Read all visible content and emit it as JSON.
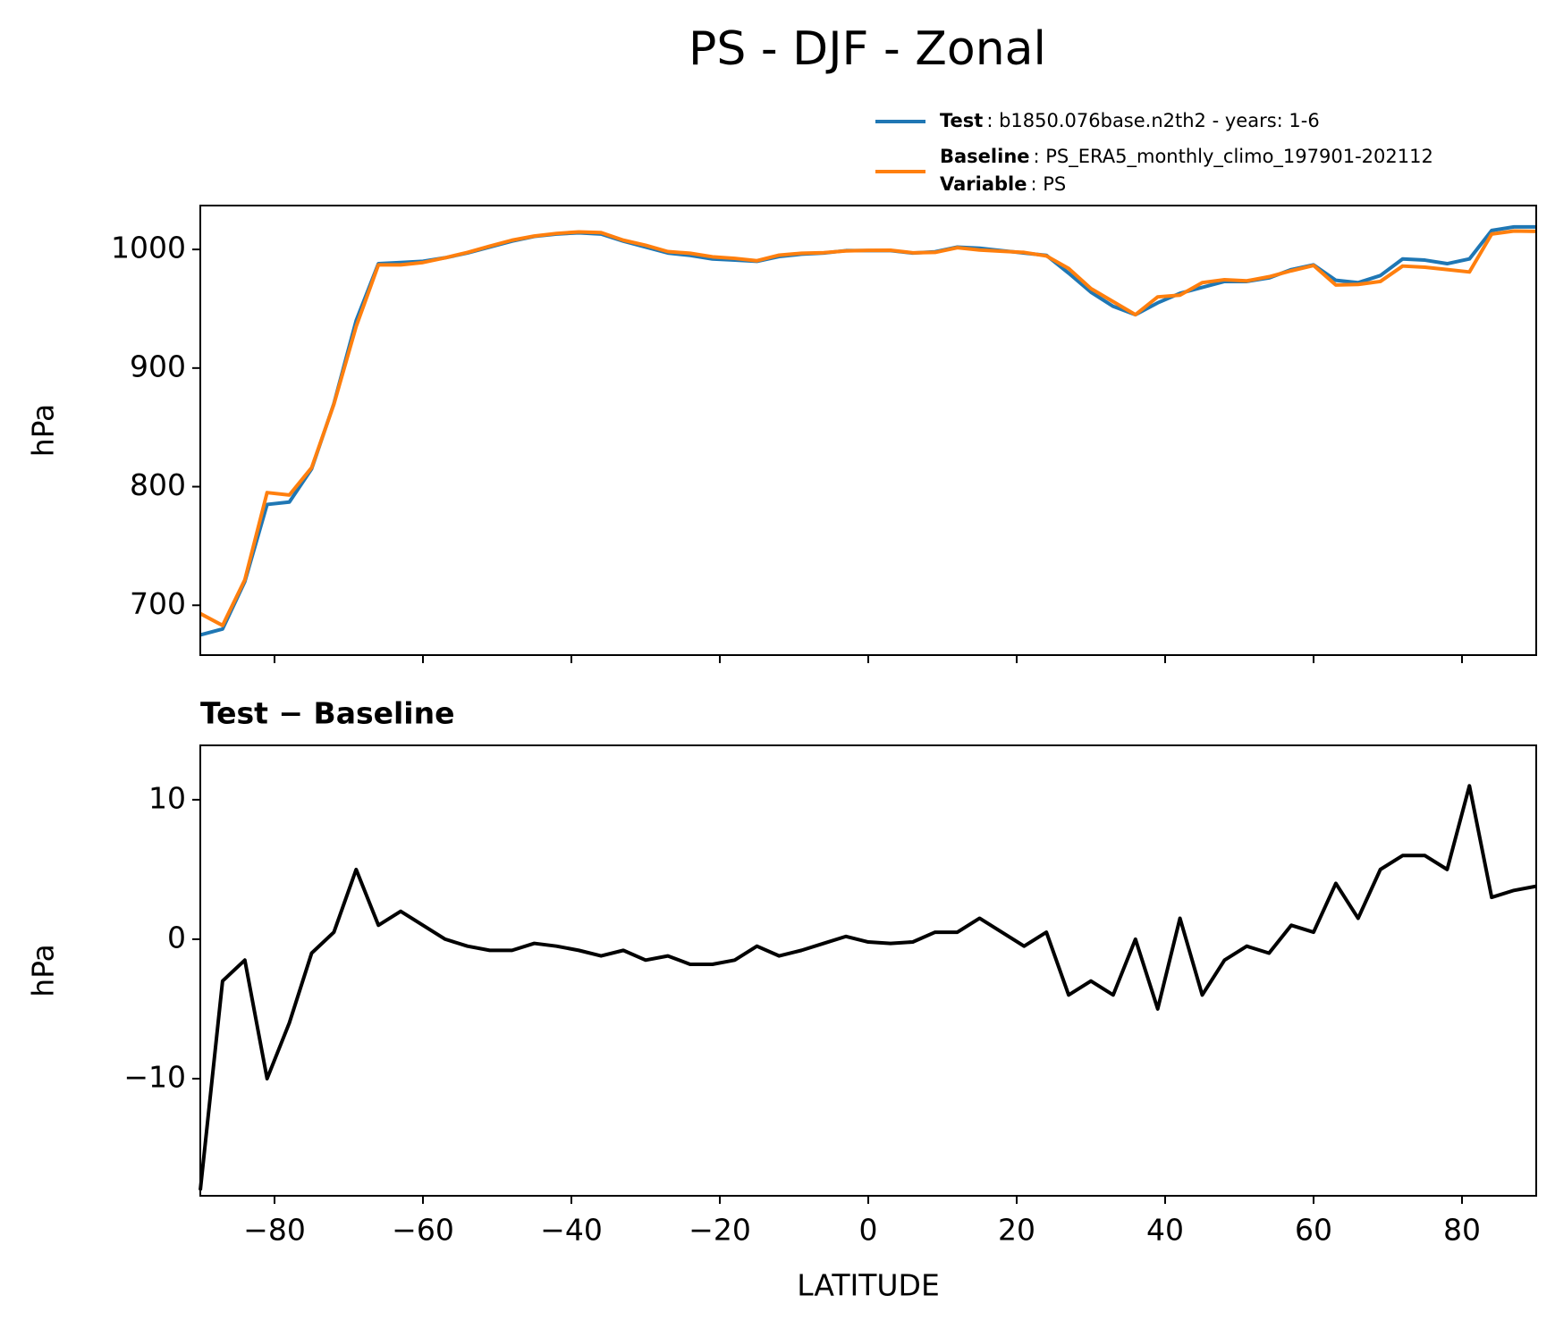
{
  "chart_data": [
    {
      "type": "line",
      "title": "PS - DJF - Zonal",
      "ylabel": "hPa",
      "x": [
        -90,
        -87,
        -84,
        -81,
        -78,
        -75,
        -72,
        -69,
        -66,
        -63,
        -60,
        -57,
        -54,
        -51,
        -48,
        -45,
        -42,
        -39,
        -36,
        -33,
        -30,
        -27,
        -24,
        -21,
        -18,
        -15,
        -12,
        -9,
        -6,
        -3,
        0,
        3,
        6,
        9,
        12,
        15,
        18,
        21,
        24,
        27,
        30,
        33,
        36,
        39,
        42,
        45,
        48,
        51,
        54,
        57,
        60,
        63,
        66,
        69,
        72,
        75,
        78,
        81,
        84,
        87,
        90
      ],
      "series": [
        {
          "name": "Test",
          "description": ": b1850.076base.n2th2 - years: 1-6",
          "color": "#1f77b4",
          "values": [
            675,
            680,
            720,
            785,
            787,
            815,
            870,
            940,
            988,
            989,
            990,
            993,
            997,
            1002,
            1007,
            1011,
            1013,
            1014,
            1013,
            1007,
            1002,
            997,
            995,
            992,
            991,
            990,
            994,
            996,
            997,
            999,
            999,
            999,
            997,
            998,
            1002,
            1001,
            999,
            997,
            995,
            980,
            964,
            952,
            945,
            955,
            963,
            968,
            973,
            973,
            976,
            983,
            987,
            974,
            972,
            978,
            992,
            991,
            988,
            992,
            1016,
            1019,
            1019
          ]
        },
        {
          "name": "Baseline",
          "description": ": PS_ERA5_monthly_climo_197901-202112",
          "color": "#ff7f0e",
          "values": [
            693,
            683,
            721.5,
            795,
            793,
            816,
            869.5,
            935,
            987,
            987,
            989,
            993,
            997.5,
            1002.8,
            1007.8,
            1011.3,
            1013.5,
            1014.8,
            1014.2,
            1007.8,
            1003.5,
            998.2,
            996.8,
            993.8,
            992.5,
            990.5,
            995.2,
            996.8,
            997.3,
            998.8,
            999.2,
            999.3,
            997.2,
            997.5,
            1001.5,
            999.5,
            998.5,
            997.5,
            994.5,
            984,
            967,
            956,
            945,
            960,
            961.5,
            972,
            974.5,
            973.5,
            977,
            982,
            986.5,
            970,
            970.5,
            973,
            986,
            985,
            983,
            981,
            1013,
            1015.5,
            1015.2
          ]
        }
      ],
      "legend_note": {
        "name": "Variable",
        "description": ": PS"
      },
      "xlim": [
        -90,
        90
      ],
      "ylim": [
        658,
        1037
      ],
      "yticks": [
        700,
        800,
        900,
        1000
      ]
    },
    {
      "type": "line",
      "title": "Test − Baseline",
      "ylabel": "hPa",
      "xlabel": "LATITUDE",
      "x": [
        -90,
        -87,
        -84,
        -81,
        -78,
        -75,
        -72,
        -69,
        -66,
        -63,
        -60,
        -57,
        -54,
        -51,
        -48,
        -45,
        -42,
        -39,
        -36,
        -33,
        -30,
        -27,
        -24,
        -21,
        -18,
        -15,
        -12,
        -9,
        -6,
        -3,
        0,
        3,
        6,
        9,
        12,
        15,
        18,
        21,
        24,
        27,
        30,
        33,
        36,
        39,
        42,
        45,
        48,
        51,
        54,
        57,
        60,
        63,
        66,
        69,
        72,
        75,
        78,
        81,
        84,
        87,
        90
      ],
      "series": [
        {
          "color": "#000000",
          "values": [
            -18,
            -3,
            -1.5,
            -10,
            -6,
            -1,
            0.5,
            5,
            1,
            2,
            1,
            0,
            -0.5,
            -0.8,
            -0.8,
            -0.3,
            -0.5,
            -0.8,
            -1.2,
            -0.8,
            -1.5,
            -1.2,
            -1.8,
            -1.8,
            -1.5,
            -0.5,
            -1.2,
            -0.8,
            -0.3,
            0.2,
            -0.2,
            -0.3,
            -0.2,
            0.5,
            0.5,
            1.5,
            0.5,
            -0.5,
            0.5,
            -4,
            -3,
            -4,
            0,
            -5,
            1.5,
            -4,
            -1.5,
            -0.5,
            -1,
            1,
            0.5,
            4,
            1.5,
            5,
            6,
            6,
            5,
            11,
            3,
            3.5,
            3.8
          ]
        }
      ],
      "xlim": [
        -90,
        90
      ],
      "ylim": [
        -18.4,
        13.9
      ],
      "xticks": [
        {
          "value": -80,
          "label": "−80"
        },
        {
          "value": -60,
          "label": "−60"
        },
        {
          "value": -40,
          "label": "−40"
        },
        {
          "value": -20,
          "label": "−20"
        },
        0,
        20,
        40,
        60,
        80
      ],
      "yticks": [
        {
          "value": -10,
          "label": "−10"
        },
        0,
        10
      ]
    }
  ]
}
